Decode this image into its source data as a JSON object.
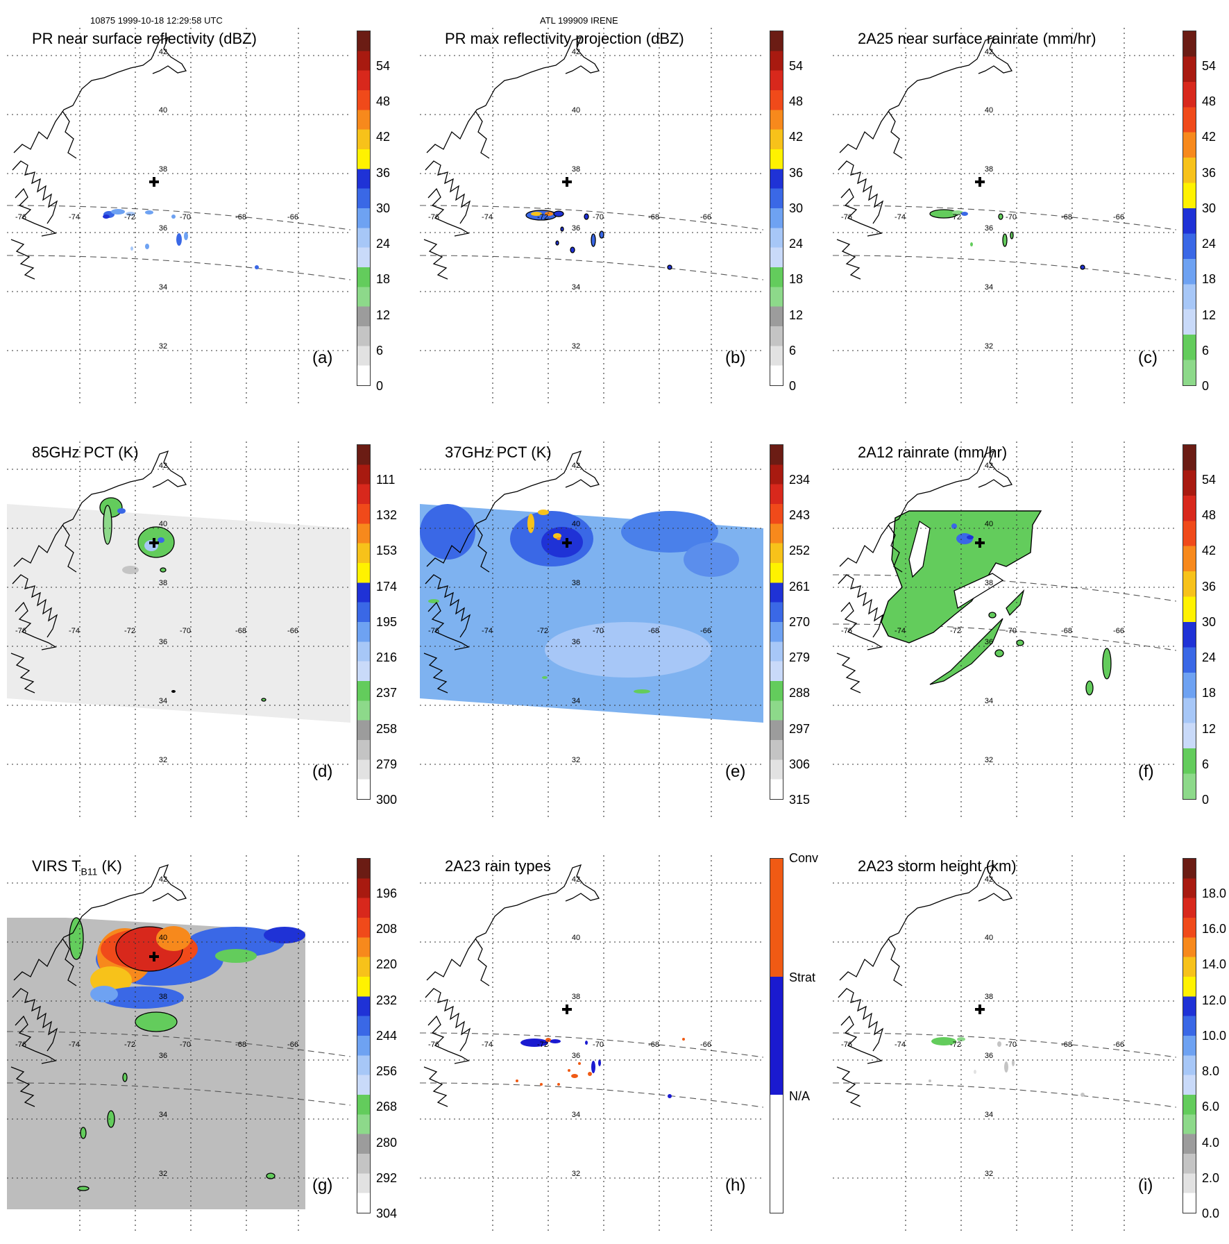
{
  "header": {
    "left": "10875 1999-10-18 12:29:58 UTC",
    "center": "ATL 199909 IRENE"
  },
  "grid_labels": {
    "latitudes": [
      "42",
      "40",
      "38",
      "36",
      "34",
      "32"
    ],
    "longitudes": [
      "-76",
      "-74",
      "-72",
      "-70",
      "-68",
      "-66"
    ]
  },
  "panels": [
    {
      "id": "a",
      "title": "PR near surface reflectivity (dBZ)",
      "label": "(a)",
      "field": "pr_swath",
      "palette": "dbz",
      "colorbar": {
        "ticks": [
          "54",
          "48",
          "42",
          "36",
          "30",
          "24",
          "18",
          "12",
          "6",
          "0"
        ],
        "stops": [
          "#6b1c14",
          "#a81a10",
          "#d8281c",
          "#f04a1a",
          "#f7891c",
          "#f7c21a",
          "#fff200",
          "#1f32d6",
          "#3a68e6",
          "#6ea2f2",
          "#a7c7f7",
          "#c9daf9",
          "#63cc5c",
          "#8dd98a",
          "#9c9c9c",
          "#c4c4c4",
          "#e2e2e2",
          "#ffffff"
        ]
      }
    },
    {
      "id": "b",
      "title": "PR max reflectivity projection (dBZ)",
      "label": "(b)",
      "field": "pr_swath_max",
      "palette": "dbz",
      "colorbar": {
        "ticks": [
          "54",
          "48",
          "42",
          "36",
          "30",
          "24",
          "18",
          "12",
          "6",
          "0"
        ],
        "stops": [
          "#6b1c14",
          "#a81a10",
          "#d8281c",
          "#f04a1a",
          "#f7891c",
          "#f7c21a",
          "#fff200",
          "#1f32d6",
          "#3a68e6",
          "#6ea2f2",
          "#a7c7f7",
          "#c9daf9",
          "#63cc5c",
          "#8dd98a",
          "#9c9c9c",
          "#c4c4c4",
          "#e2e2e2",
          "#ffffff"
        ]
      }
    },
    {
      "id": "c",
      "title": "2A25 near surface rainrate (mm/hr)",
      "label": "(c)",
      "field": "pr_rain",
      "palette": "rain",
      "colorbar": {
        "ticks": [
          "54",
          "48",
          "42",
          "36",
          "30",
          "24",
          "18",
          "12",
          "6",
          "0"
        ],
        "stops": [
          "#6b1c14",
          "#a81a10",
          "#d8281c",
          "#f04a1a",
          "#f7891c",
          "#f7c21a",
          "#fff200",
          "#1f32d6",
          "#3a68e6",
          "#6ea2f2",
          "#a7c7f7",
          "#c9daf9",
          "#63cc5c",
          "#8dd98a"
        ]
      }
    },
    {
      "id": "d",
      "title": "85GHz PCT (K)",
      "label": "(d)",
      "field": "tmi_85",
      "palette": "pct",
      "colorbar": {
        "ticks": [
          "111",
          "132",
          "153",
          "174",
          "195",
          "216",
          "237",
          "258",
          "279",
          "300"
        ],
        "stops": [
          "#6b1c14",
          "#a81a10",
          "#d8281c",
          "#f04a1a",
          "#f7891c",
          "#f7c21a",
          "#fff200",
          "#1f32d6",
          "#3a68e6",
          "#6ea2f2",
          "#a7c7f7",
          "#c9daf9",
          "#63cc5c",
          "#8dd98a",
          "#9c9c9c",
          "#c4c4c4",
          "#e2e2e2",
          "#ffffff"
        ]
      }
    },
    {
      "id": "e",
      "title": "37GHz PCT (K)",
      "label": "(e)",
      "field": "tmi_37",
      "palette": "pct",
      "colorbar": {
        "ticks": [
          "234",
          "243",
          "252",
          "261",
          "270",
          "279",
          "288",
          "297",
          "306",
          "315"
        ],
        "stops": [
          "#6b1c14",
          "#a81a10",
          "#d8281c",
          "#f04a1a",
          "#f7891c",
          "#f7c21a",
          "#fff200",
          "#1f32d6",
          "#3a68e6",
          "#6ea2f2",
          "#a7c7f7",
          "#c9daf9",
          "#63cc5c",
          "#8dd98a",
          "#9c9c9c",
          "#c4c4c4",
          "#e2e2e2",
          "#ffffff"
        ]
      }
    },
    {
      "id": "f",
      "title": "2A12 rainrate (mm/hr)",
      "label": "(f)",
      "field": "tmi_rain",
      "palette": "rain",
      "colorbar": {
        "ticks": [
          "54",
          "48",
          "42",
          "36",
          "30",
          "24",
          "18",
          "12",
          "6",
          "0"
        ],
        "stops": [
          "#6b1c14",
          "#a81a10",
          "#d8281c",
          "#f04a1a",
          "#f7891c",
          "#f7c21a",
          "#fff200",
          "#1f32d6",
          "#3a68e6",
          "#6ea2f2",
          "#a7c7f7",
          "#c9daf9",
          "#63cc5c",
          "#8dd98a"
        ]
      }
    },
    {
      "id": "g",
      "title": "VIRS T",
      "title_sub": "B11",
      "title_suffix": " (K)",
      "label": "(g)",
      "field": "virs",
      "palette": "virs",
      "colorbar": {
        "ticks": [
          "196",
          "208",
          "220",
          "232",
          "244",
          "256",
          "268",
          "280",
          "292",
          "304"
        ],
        "stops": [
          "#6b1c14",
          "#a81a10",
          "#d8281c",
          "#f04a1a",
          "#f7891c",
          "#f7c21a",
          "#fff200",
          "#1f32d6",
          "#3a68e6",
          "#6ea2f2",
          "#a7c7f7",
          "#c9daf9",
          "#63cc5c",
          "#8dd98a",
          "#9c9c9c",
          "#c4c4c4",
          "#e2e2e2",
          "#ffffff"
        ]
      }
    },
    {
      "id": "h",
      "title": "2A23 rain types",
      "label": "(h)",
      "field": "raintype",
      "palette": "types",
      "colorbar": {
        "ticks": [
          "Conv",
          "Strat",
          "N/A"
        ],
        "stops": [
          "#f05a14",
          "#f05a14",
          "#f05a14",
          "#1a1ad0",
          "#1a1ad0",
          "#1a1ad0",
          "#ffffff",
          "#ffffff",
          "#ffffff"
        ]
      }
    },
    {
      "id": "i",
      "title": "2A23 storm height (km)",
      "label": "(i)",
      "field": "height",
      "palette": "height",
      "colorbar": {
        "ticks": [
          "18.0",
          "16.0",
          "14.0",
          "12.0",
          "10.0",
          "8.0",
          "6.0",
          "4.0",
          "2.0",
          "0.0"
        ],
        "stops": [
          "#6b1c14",
          "#a81a10",
          "#d8281c",
          "#f04a1a",
          "#f7891c",
          "#f7c21a",
          "#fff200",
          "#1f32d6",
          "#3a68e6",
          "#6ea2f2",
          "#a7c7f7",
          "#c9daf9",
          "#63cc5c",
          "#8dd98a",
          "#9c9c9c",
          "#c4c4c4",
          "#e2e2e2",
          "#ffffff"
        ]
      }
    }
  ]
}
